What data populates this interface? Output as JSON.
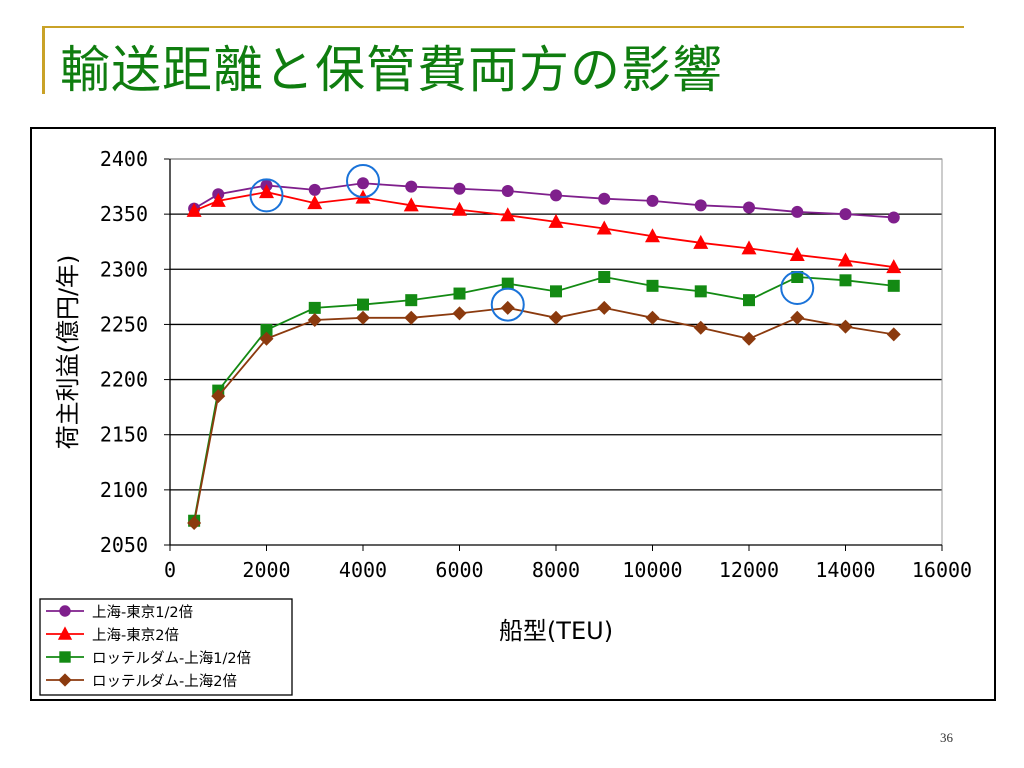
{
  "slide": {
    "title": "輸送距離と保管費両方の影響",
    "page_number": "36"
  },
  "chart_data": {
    "type": "line",
    "xlabel": "船型(TEU)",
    "ylabel": "荷主利益(億円/年)",
    "xlim": [
      0,
      16000
    ],
    "ylim": [
      2050,
      2400
    ],
    "xticks": [
      0,
      2000,
      4000,
      6000,
      8000,
      10000,
      12000,
      14000,
      16000
    ],
    "yticks": [
      2050,
      2100,
      2150,
      2200,
      2250,
      2300,
      2350,
      2400
    ],
    "grid": "horizontal major gridlines",
    "legend_position": "bottom-left",
    "series": [
      {
        "name": "上海-東京1/2倍",
        "color": "#7f1f8c",
        "marker": "circle",
        "x": [
          500,
          1000,
          2000,
          3000,
          4000,
          5000,
          6000,
          7000,
          8000,
          9000,
          10000,
          11000,
          12000,
          13000,
          14000,
          15000
        ],
        "values": [
          2355,
          2368,
          2376,
          2372,
          2378,
          2375,
          2373,
          2371,
          2367,
          2364,
          2362,
          2358,
          2356,
          2352,
          2350,
          2347
        ]
      },
      {
        "name": "上海-東京2倍",
        "color": "#ff0000",
        "marker": "triangle",
        "x": [
          500,
          1000,
          2000,
          3000,
          4000,
          5000,
          6000,
          7000,
          8000,
          9000,
          10000,
          11000,
          12000,
          13000,
          14000,
          15000
        ],
        "values": [
          2353,
          2362,
          2370,
          2360,
          2365,
          2358,
          2354,
          2349,
          2343,
          2337,
          2330,
          2324,
          2319,
          2313,
          2308,
          2302
        ]
      },
      {
        "name": "ロッテルダム-上海1/2倍",
        "color": "#138a13",
        "marker": "square",
        "x": [
          500,
          1000,
          2000,
          3000,
          4000,
          5000,
          6000,
          7000,
          8000,
          9000,
          10000,
          11000,
          12000,
          13000,
          14000,
          15000
        ],
        "values": [
          2072,
          2190,
          2245,
          2265,
          2268,
          2272,
          2278,
          2287,
          2280,
          2293,
          2285,
          2280,
          2272,
          2293,
          2290,
          2285
        ]
      },
      {
        "name": "ロッテルダム-上海2倍",
        "color": "#8b3a0e",
        "marker": "diamond",
        "x": [
          500,
          1000,
          2000,
          3000,
          4000,
          5000,
          6000,
          7000,
          8000,
          9000,
          10000,
          11000,
          12000,
          13000,
          14000,
          15000
        ],
        "values": [
          2070,
          2185,
          2237,
          2254,
          2256,
          2256,
          2260,
          2265,
          2256,
          2265,
          2256,
          2247,
          2237,
          2256,
          2248,
          2241
        ]
      }
    ],
    "highlight_circles": [
      {
        "x": 2000,
        "y": 2367
      },
      {
        "x": 4000,
        "y": 2380
      },
      {
        "x": 7000,
        "y": 2268
      },
      {
        "x": 13000,
        "y": 2283
      }
    ],
    "highlight_color": "#1a73d9"
  }
}
